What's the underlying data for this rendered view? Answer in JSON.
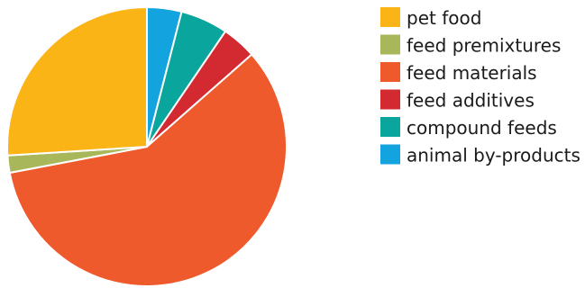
{
  "chart_data": {
    "type": "pie",
    "title": "",
    "start_angle_deg": 0,
    "direction": "clockwise",
    "legend_position": "right",
    "slices": [
      {
        "label": "animal by-products",
        "value": 4.0,
        "color": "#13a3df"
      },
      {
        "label": "compound feeds",
        "value": 5.5,
        "color": "#0aa59c"
      },
      {
        "label": "feed additives",
        "value": 4.0,
        "color": "#d22a30"
      },
      {
        "label": "feed materials",
        "value": 58.5,
        "color": "#ef5a2c"
      },
      {
        "label": "feed premixtures",
        "value": 2.0,
        "color": "#a7b75a"
      },
      {
        "label": "pet food",
        "value": 26.0,
        "color": "#fbb416"
      }
    ],
    "legend_order": [
      "pet food",
      "feed premixtures",
      "feed materials",
      "feed additives",
      "compound feeds",
      "animal by-products"
    ]
  }
}
